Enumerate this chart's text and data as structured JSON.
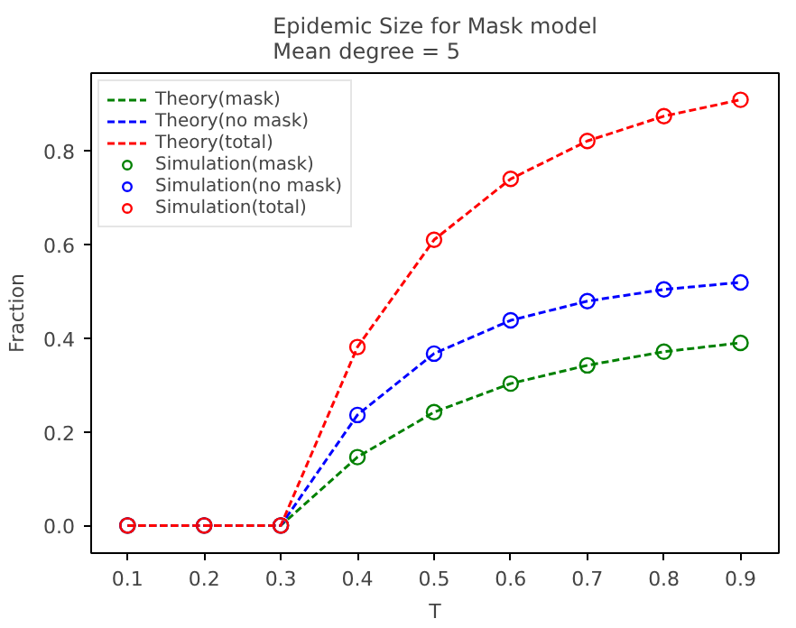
{
  "chart_data": {
    "type": "line",
    "title": "Epidemic Size for Mask model\nMean degree = 5",
    "xlabel": "T",
    "ylabel": "Fraction",
    "x": [
      0.1,
      0.2,
      0.3,
      0.4,
      0.5,
      0.6,
      0.7,
      0.8,
      0.9
    ],
    "xlim": [
      0.0525,
      0.95
    ],
    "xticks": [
      0.1,
      0.2,
      0.3,
      0.4,
      0.5,
      0.6,
      0.7,
      0.8,
      0.9
    ],
    "ylim": [
      -0.059,
      0.966
    ],
    "yticks": [
      {
        "value": 0,
        "label": "0.0"
      },
      0.2,
      0.4,
      0.6,
      0.8
    ],
    "grid": false,
    "legend": "top left",
    "series": [
      {
        "name": "Theory(mask)",
        "line_style": "dashed",
        "marker": "none",
        "color": "#008000",
        "values": [
          0,
          0,
          0,
          0.146,
          0.242,
          0.303,
          0.342,
          0.371,
          0.39
        ]
      },
      {
        "name": "Theory(no mask)",
        "line_style": "dashed",
        "marker": "none",
        "color": "#0000ff",
        "values": [
          0,
          0,
          0,
          0.236,
          0.367,
          0.438,
          0.479,
          0.504,
          0.519
        ]
      },
      {
        "name": "Theory(total)",
        "line_style": "dashed",
        "marker": "none",
        "color": "#ff0000",
        "values": [
          0,
          0,
          0,
          0.381,
          0.61,
          0.74,
          0.821,
          0.874,
          0.909
        ]
      },
      {
        "name": "Simulation(mask)",
        "type": "scatter",
        "marker": "circle",
        "color": "#008000",
        "values": [
          0,
          0,
          0,
          0.146,
          0.242,
          0.303,
          0.342,
          0.371,
          0.39
        ]
      },
      {
        "name": "Simulation(no mask)",
        "type": "scatter",
        "marker": "circle",
        "color": "#0000ff",
        "values": [
          0,
          0,
          0,
          0.236,
          0.367,
          0.438,
          0.479,
          0.504,
          0.519
        ]
      },
      {
        "name": "Simulation(total)",
        "type": "scatter",
        "marker": "circle",
        "color": "#ff0000",
        "values": [
          0,
          0,
          0,
          0.381,
          0.61,
          0.74,
          0.821,
          0.874,
          0.909
        ]
      }
    ]
  }
}
